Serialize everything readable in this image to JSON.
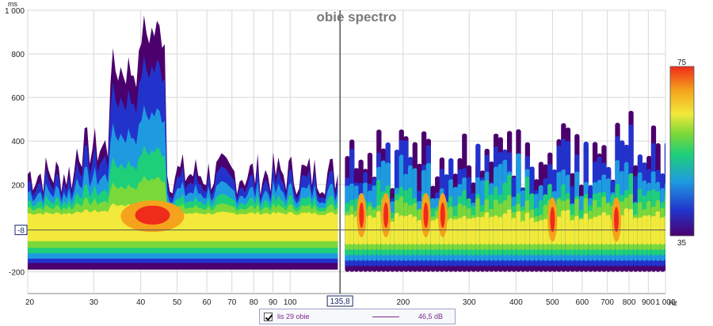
{
  "chart_data": {
    "type": "heatmap",
    "title": "obie spectro",
    "y_unit": "ms",
    "x_unit": "Hz",
    "x_scale": "log",
    "xlim": [
      20,
      1000
    ],
    "ylim": [
      -300,
      1000
    ],
    "y_ticks": [
      {
        "value": 1000,
        "label": "1 000"
      },
      {
        "value": 800,
        "label": "800"
      },
      {
        "value": 600,
        "label": "600"
      },
      {
        "value": 400,
        "label": "400"
      },
      {
        "value": 200,
        "label": "200"
      },
      {
        "value": -200,
        "label": "-200"
      }
    ],
    "x_ticks": [
      {
        "value": 20,
        "label": "20"
      },
      {
        "value": 30,
        "label": "30"
      },
      {
        "value": 40,
        "label": "40"
      },
      {
        "value": 50,
        "label": "50"
      },
      {
        "value": 60,
        "label": "60"
      },
      {
        "value": 70,
        "label": "70"
      },
      {
        "value": 80,
        "label": "80"
      },
      {
        "value": 90,
        "label": "90"
      },
      {
        "value": 100,
        "label": "100"
      },
      {
        "value": 200,
        "label": "200"
      },
      {
        "value": 300,
        "label": "300"
      },
      {
        "value": 400,
        "label": "400"
      },
      {
        "value": 500,
        "label": "500"
      },
      {
        "value": 600,
        "label": "600"
      },
      {
        "value": 700,
        "label": "700"
      },
      {
        "value": 800,
        "label": "800"
      },
      {
        "value": 900,
        "label": "900"
      },
      {
        "value": 1000,
        "label": "1 000"
      }
    ],
    "cursor": {
      "x": 135.8,
      "x_label": "135,8",
      "y": -8,
      "y_label": "-8"
    },
    "colorbar": {
      "min": 35,
      "max": 75,
      "min_label": "35",
      "max_label": "75"
    },
    "grid": true,
    "series": [
      {
        "name": "lis 29 obie",
        "value_label": "46,5 dB",
        "color": "#7a2a8a"
      }
    ],
    "peaks_db": [
      {
        "freq": 42,
        "time": 60,
        "db": 70
      },
      {
        "freq": 155,
        "time": 60,
        "db": 66
      },
      {
        "freq": 180,
        "time": 60,
        "db": 64
      },
      {
        "freq": 230,
        "time": 60,
        "db": 68
      },
      {
        "freq": 255,
        "time": 60,
        "db": 70
      },
      {
        "freq": 500,
        "time": 40,
        "db": 64
      },
      {
        "freq": 740,
        "time": 40,
        "db": 65
      }
    ]
  },
  "colors": {
    "scale": [
      "#4b006e",
      "#2233cc",
      "#1e9be0",
      "#1ecf7a",
      "#7bd83a",
      "#f2e93a",
      "#f5a21c",
      "#ef2b1a"
    ],
    "cursor": "#000000",
    "axis_box": "#1a2a6a"
  }
}
